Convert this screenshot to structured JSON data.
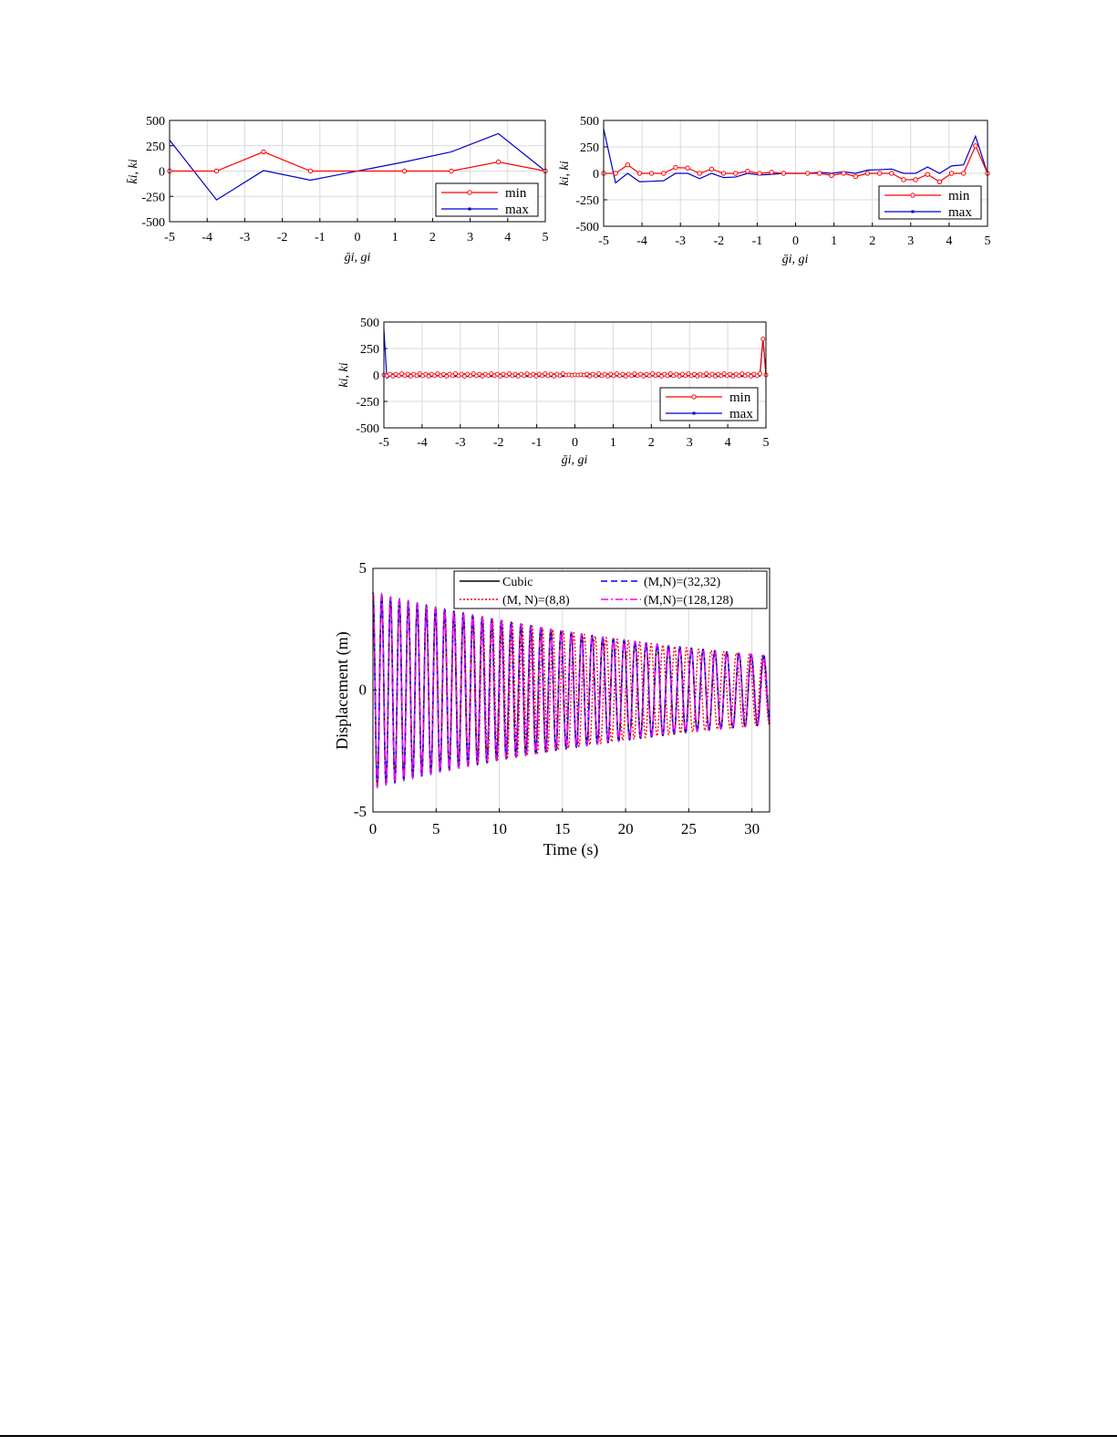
{
  "chart_data": [
    {
      "id": "top-left",
      "type": "line",
      "xlim": [
        -5,
        5
      ],
      "ylim": [
        -500,
        500
      ],
      "xticks": [
        "-5",
        "-4",
        "-3",
        "-2",
        "-1",
        "0",
        "1",
        "2",
        "3",
        "4",
        "5"
      ],
      "yticks": [
        "-500",
        "-250",
        "0",
        "250",
        "500"
      ],
      "xlabel": "ḡi, gi",
      "ylabel": "k̄i, ki",
      "grid": true,
      "legend": "bottom-right",
      "series": [
        {
          "name": "min",
          "color": "#ff0000",
          "marker": "circle",
          "x": [
            -5,
            -3.75,
            -2.5,
            -1.25,
            1.25,
            2.5,
            3.75,
            5
          ],
          "y": [
            0,
            0,
            190,
            0,
            0,
            0,
            90,
            0
          ]
        },
        {
          "name": "max",
          "color": "#0000cc",
          "marker": "none",
          "x": [
            -5,
            -3.75,
            -2.5,
            -1.25,
            1.25,
            2.5,
            3.75,
            5
          ],
          "y": [
            305,
            -285,
            5,
            -90,
            90,
            190,
            370,
            0
          ]
        }
      ]
    },
    {
      "id": "top-right",
      "type": "line",
      "xlim": [
        -5,
        5
      ],
      "ylim": [
        -500,
        500
      ],
      "xticks": [
        "-5",
        "-4",
        "-3",
        "-2",
        "-1",
        "0",
        "1",
        "2",
        "3",
        "4",
        "5"
      ],
      "yticks": [
        "-500",
        "-250",
        "0",
        "250",
        "500"
      ],
      "xlabel": "ḡi, gi",
      "ylabel": "ki, ki",
      "grid": true,
      "legend": "bottom-right",
      "series": [
        {
          "name": "min",
          "color": "#ff0000",
          "marker": "circle",
          "x": [
            -5,
            -4.688,
            -4.375,
            -4.063,
            -3.75,
            -3.438,
            -3.125,
            -2.813,
            -2.5,
            -2.188,
            -1.875,
            -1.563,
            -1.25,
            -0.938,
            -0.625,
            -0.313,
            0.313,
            0.625,
            0.938,
            1.25,
            1.563,
            1.875,
            2.188,
            2.5,
            2.813,
            3.125,
            3.438,
            3.75,
            4.063,
            4.375,
            4.688,
            5
          ],
          "y": [
            0,
            0,
            80,
            0,
            0,
            0,
            55,
            50,
            0,
            40,
            0,
            0,
            20,
            0,
            10,
            0,
            0,
            0,
            -20,
            0,
            -30,
            0,
            0,
            0,
            -60,
            -60,
            -10,
            -80,
            0,
            0,
            260,
            0
          ]
        },
        {
          "name": "max",
          "color": "#0000cc",
          "marker": "none",
          "x": [
            -5,
            -4.688,
            -4.375,
            -4.063,
            -3.75,
            -3.438,
            -3.125,
            -2.813,
            -2.5,
            -2.188,
            -1.875,
            -1.563,
            -1.25,
            -0.938,
            -0.625,
            -0.313,
            0.313,
            0.625,
            0.938,
            1.25,
            1.563,
            1.875,
            2.188,
            2.5,
            2.813,
            3.125,
            3.438,
            3.75,
            4.063,
            4.375,
            4.688,
            5
          ],
          "y": [
            420,
            -90,
            0,
            -80,
            -75,
            -70,
            0,
            0,
            -50,
            0,
            -40,
            -35,
            0,
            -15,
            -10,
            0,
            0,
            10,
            0,
            15,
            0,
            30,
            35,
            40,
            0,
            0,
            60,
            0,
            70,
            80,
            350,
            0
          ]
        }
      ]
    },
    {
      "id": "middle",
      "type": "line",
      "xlim": [
        -5,
        5
      ],
      "ylim": [
        -500,
        500
      ],
      "xticks": [
        "-5",
        "-4",
        "-3",
        "-2",
        "-1",
        "0",
        "1",
        "2",
        "3",
        "4",
        "5"
      ],
      "yticks": [
        "-500",
        "-250",
        "0",
        "250",
        "500"
      ],
      "xlabel": "ḡi, gi",
      "ylabel": "ki, ki",
      "grid": true,
      "legend": "bottom-right",
      "series": [
        {
          "name": "min",
          "color": "#ff0000",
          "marker": "circle",
          "pattern": "dense oscillation of amplitude about ±15 around 0 with 128 nodes; spikes at x≈-5 (420) and x≈4.92 (340)"
        },
        {
          "name": "max",
          "color": "#0000cc",
          "marker": "none",
          "pattern": "dense oscillation of amplitude about ±20 around 0; spikes at x=-5 (430) and x≈4.92 (350)"
        }
      ]
    },
    {
      "id": "bottom",
      "type": "line",
      "xlim": [
        0,
        31.4
      ],
      "ylim": [
        -5,
        5
      ],
      "xticks": [
        "0",
        "5",
        "10",
        "15",
        "20",
        "25",
        "30"
      ],
      "yticks": [
        "-5",
        "0",
        "5"
      ],
      "xlabel": "Time (s)",
      "ylabel": "Displacement (m)",
      "grid": true,
      "legend": "top",
      "envelope": {
        "start_amplitude": 4.0,
        "end_amplitude": 1.4
      },
      "series": [
        {
          "name": "Cubic",
          "color": "#000000",
          "style": "solid"
        },
        {
          "name": "(M, N)=(8,8)",
          "color": "#ff0000",
          "style": "dotted"
        },
        {
          "name": "(M,N)=(32,32)",
          "color": "#0000ff",
          "style": "dashed"
        },
        {
          "name": "(M,N)=(128,128)",
          "color": "#ff00ff",
          "style": "dash-dot"
        }
      ]
    }
  ]
}
